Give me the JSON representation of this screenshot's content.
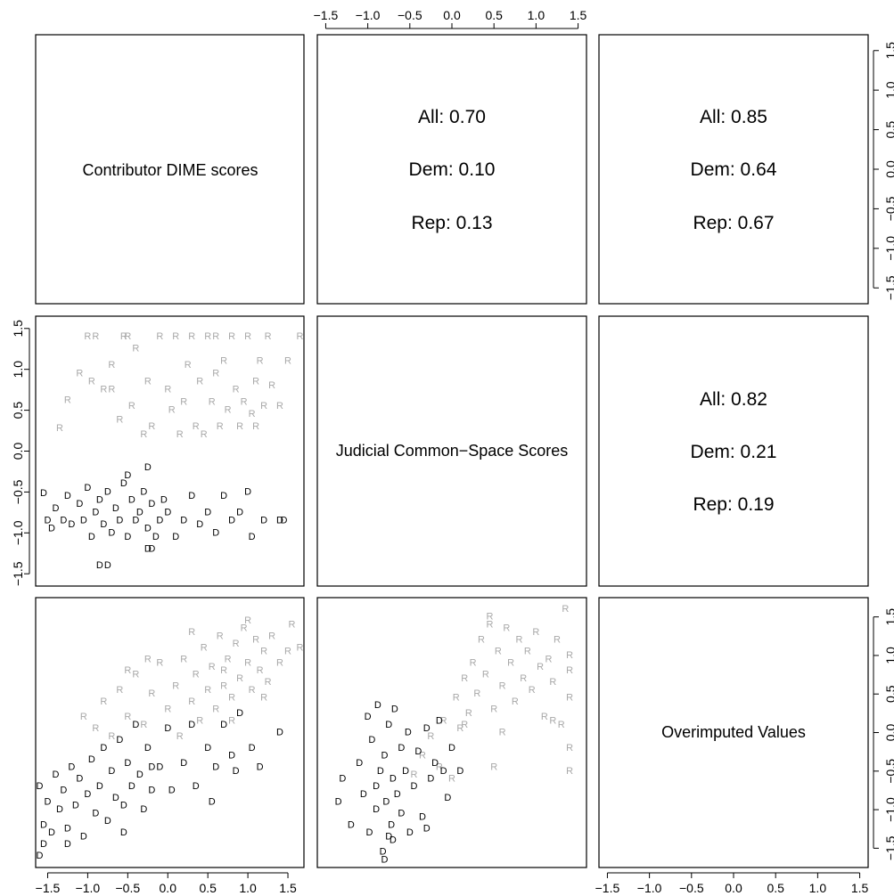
{
  "colors": {
    "dem": "#000000",
    "rep": "#a8a8a8"
  },
  "variables": [
    "Contributor DIME scores",
    "Judicial Common−Space Scores",
    "Overimputed Values"
  ],
  "ticks": [
    -1.5,
    -1.0,
    -0.5,
    0.0,
    0.5,
    1.0,
    1.5
  ],
  "tick_labels": [
    "−1.5",
    "−1.0",
    "−0.5",
    "0.0",
    "0.5",
    "1.0",
    "1.5"
  ],
  "correlations": [
    {
      "row": 0,
      "col": 1,
      "all": "All: 0.70",
      "dem": "Dem: 0.10",
      "rep": "Rep: 0.13"
    },
    {
      "row": 0,
      "col": 2,
      "all": "All: 0.85",
      "dem": "Dem: 0.64",
      "rep": "Rep: 0.67"
    },
    {
      "row": 1,
      "col": 2,
      "all": "All: 0.82",
      "dem": "Dem: 0.21",
      "rep": "Rep: 0.19"
    }
  ],
  "chart_data": {
    "type": "scatter",
    "title": "",
    "marker_labels": {
      "dem": "D",
      "rep": "R"
    },
    "panels": [
      {
        "name": "Judicial Common-Space Scores vs Contributor DIME scores",
        "xvar": "Contributor DIME scores",
        "yvar": "Judicial Common−Space Scores",
        "xlim": [
          -1.65,
          1.7
        ],
        "ylim": [
          -1.65,
          1.65
        ],
        "rep": [
          [
            -1.35,
            0.28
          ],
          [
            -1.25,
            0.62
          ],
          [
            -1.1,
            0.95
          ],
          [
            -1.0,
            1.4
          ],
          [
            -0.95,
            0.85
          ],
          [
            -0.9,
            1.4
          ],
          [
            -0.8,
            0.75
          ],
          [
            -0.7,
            1.05
          ],
          [
            -0.6,
            0.38
          ],
          [
            -0.55,
            1.4
          ],
          [
            -0.5,
            1.4
          ],
          [
            -0.45,
            0.55
          ],
          [
            -0.4,
            1.25
          ],
          [
            -0.3,
            0.2
          ],
          [
            -0.2,
            0.3
          ],
          [
            -0.1,
            1.4
          ],
          [
            0.0,
            0.75
          ],
          [
            0.05,
            0.5
          ],
          [
            0.1,
            1.4
          ],
          [
            0.15,
            0.2
          ],
          [
            0.2,
            0.6
          ],
          [
            0.25,
            1.05
          ],
          [
            0.3,
            1.4
          ],
          [
            0.35,
            0.3
          ],
          [
            0.4,
            0.85
          ],
          [
            0.45,
            0.2
          ],
          [
            0.5,
            1.4
          ],
          [
            0.55,
            0.6
          ],
          [
            0.6,
            0.95
          ],
          [
            0.65,
            0.3
          ],
          [
            0.7,
            1.1
          ],
          [
            0.75,
            0.5
          ],
          [
            0.8,
            1.4
          ],
          [
            0.85,
            0.75
          ],
          [
            0.9,
            0.3
          ],
          [
            0.95,
            0.6
          ],
          [
            1.0,
            1.4
          ],
          [
            1.05,
            0.45
          ],
          [
            1.1,
            0.85
          ],
          [
            1.15,
            1.1
          ],
          [
            1.2,
            0.55
          ],
          [
            1.25,
            1.4
          ],
          [
            1.3,
            0.8
          ],
          [
            1.4,
            0.55
          ],
          [
            1.5,
            1.1
          ],
          [
            1.65,
            1.4
          ],
          [
            -0.7,
            0.75
          ],
          [
            -0.25,
            0.85
          ],
          [
            0.6,
            1.4
          ],
          [
            1.1,
            0.3
          ]
        ],
        "dem": [
          [
            -1.55,
            -0.52
          ],
          [
            -1.5,
            -0.85
          ],
          [
            -1.45,
            -0.95
          ],
          [
            -1.4,
            -0.7
          ],
          [
            -1.3,
            -0.85
          ],
          [
            -1.25,
            -0.55
          ],
          [
            -1.2,
            -0.9
          ],
          [
            -1.1,
            -0.65
          ],
          [
            -1.05,
            -0.85
          ],
          [
            -1.0,
            -0.45
          ],
          [
            -0.95,
            -1.05
          ],
          [
            -0.9,
            -0.75
          ],
          [
            -0.85,
            -0.6
          ],
          [
            -0.8,
            -0.9
          ],
          [
            -0.75,
            -0.5
          ],
          [
            -0.7,
            -1.0
          ],
          [
            -0.65,
            -0.7
          ],
          [
            -0.6,
            -0.85
          ],
          [
            -0.55,
            -0.4
          ],
          [
            -0.5,
            -1.05
          ],
          [
            -0.45,
            -0.6
          ],
          [
            -0.4,
            -0.85
          ],
          [
            -0.35,
            -0.75
          ],
          [
            -0.3,
            -0.5
          ],
          [
            -0.25,
            -0.95
          ],
          [
            -0.2,
            -0.65
          ],
          [
            -0.15,
            -1.05
          ],
          [
            -0.1,
            -0.85
          ],
          [
            -0.05,
            -0.6
          ],
          [
            0.0,
            -0.75
          ],
          [
            0.1,
            -1.05
          ],
          [
            0.2,
            -0.85
          ],
          [
            0.3,
            -0.55
          ],
          [
            0.4,
            -0.9
          ],
          [
            0.5,
            -0.75
          ],
          [
            0.6,
            -1.0
          ],
          [
            0.7,
            -0.55
          ],
          [
            0.8,
            -0.85
          ],
          [
            0.9,
            -0.75
          ],
          [
            1.0,
            -0.5
          ],
          [
            1.05,
            -1.05
          ],
          [
            1.2,
            -0.85
          ],
          [
            1.4,
            -0.85
          ],
          [
            1.45,
            -0.85
          ],
          [
            -0.85,
            -1.4
          ],
          [
            -0.75,
            -1.4
          ],
          [
            -0.25,
            -1.2
          ],
          [
            -0.2,
            -1.2
          ],
          [
            -0.25,
            -0.2
          ],
          [
            -0.5,
            -0.3
          ]
        ]
      },
      {
        "name": "Overimputed Values vs Contributor DIME scores",
        "xvar": "Contributor DIME scores",
        "yvar": "Overimputed Values",
        "xlim": [
          -1.65,
          1.7
        ],
        "ylim": [
          -1.75,
          1.75
        ],
        "rep": [
          [
            -1.05,
            0.2
          ],
          [
            -0.9,
            0.05
          ],
          [
            -0.8,
            0.4
          ],
          [
            -0.7,
            -0.05
          ],
          [
            -0.6,
            0.55
          ],
          [
            -0.5,
            0.2
          ],
          [
            -0.4,
            0.75
          ],
          [
            -0.3,
            0.1
          ],
          [
            -0.2,
            0.5
          ],
          [
            -0.1,
            0.9
          ],
          [
            0.0,
            0.3
          ],
          [
            0.1,
            0.6
          ],
          [
            0.15,
            -0.05
          ],
          [
            0.2,
            0.95
          ],
          [
            0.3,
            0.4
          ],
          [
            0.35,
            0.75
          ],
          [
            0.4,
            0.15
          ],
          [
            0.45,
            1.1
          ],
          [
            0.5,
            0.55
          ],
          [
            0.55,
            0.85
          ],
          [
            0.6,
            0.3
          ],
          [
            0.65,
            1.25
          ],
          [
            0.7,
            0.6
          ],
          [
            0.75,
            0.95
          ],
          [
            0.8,
            0.45
          ],
          [
            0.85,
            1.15
          ],
          [
            0.9,
            0.7
          ],
          [
            0.95,
            1.35
          ],
          [
            1.0,
            0.9
          ],
          [
            1.05,
            0.55
          ],
          [
            1.1,
            1.2
          ],
          [
            1.15,
            0.8
          ],
          [
            1.2,
            1.05
          ],
          [
            1.25,
            0.65
          ],
          [
            1.3,
            1.25
          ],
          [
            1.4,
            0.9
          ],
          [
            1.5,
            1.05
          ],
          [
            1.55,
            1.4
          ],
          [
            1.65,
            1.1
          ],
          [
            0.3,
            1.3
          ],
          [
            -0.5,
            0.8
          ],
          [
            0.8,
            0.15
          ],
          [
            1.0,
            1.45
          ],
          [
            0.7,
            0.8
          ],
          [
            1.2,
            0.45
          ],
          [
            -0.25,
            0.95
          ]
        ],
        "dem": [
          [
            -1.6,
            -0.7
          ],
          [
            -1.55,
            -1.2
          ],
          [
            -1.5,
            -0.9
          ],
          [
            -1.45,
            -1.3
          ],
          [
            -1.4,
            -0.55
          ],
          [
            -1.35,
            -1.0
          ],
          [
            -1.3,
            -0.75
          ],
          [
            -1.25,
            -1.25
          ],
          [
            -1.2,
            -0.45
          ],
          [
            -1.15,
            -0.95
          ],
          [
            -1.1,
            -0.6
          ],
          [
            -1.05,
            -1.35
          ],
          [
            -1.0,
            -0.8
          ],
          [
            -0.95,
            -0.35
          ],
          [
            -0.9,
            -1.05
          ],
          [
            -0.85,
            -0.7
          ],
          [
            -0.8,
            -0.2
          ],
          [
            -0.75,
            -1.15
          ],
          [
            -0.7,
            -0.5
          ],
          [
            -0.65,
            -0.85
          ],
          [
            -0.6,
            -0.1
          ],
          [
            -0.55,
            -0.95
          ],
          [
            -0.5,
            -0.4
          ],
          [
            -0.45,
            -0.7
          ],
          [
            -0.4,
            0.1
          ],
          [
            -0.35,
            -0.55
          ],
          [
            -0.3,
            -1.0
          ],
          [
            -0.25,
            -0.2
          ],
          [
            -0.2,
            -0.75
          ],
          [
            -0.1,
            -0.45
          ],
          [
            0.0,
            0.05
          ],
          [
            0.05,
            -0.75
          ],
          [
            0.2,
            -0.4
          ],
          [
            0.3,
            0.1
          ],
          [
            0.35,
            -0.7
          ],
          [
            0.5,
            -0.2
          ],
          [
            0.55,
            -0.9
          ],
          [
            0.6,
            -0.45
          ],
          [
            0.7,
            0.1
          ],
          [
            0.8,
            -0.3
          ],
          [
            0.85,
            -0.5
          ],
          [
            0.9,
            0.25
          ],
          [
            1.05,
            -0.2
          ],
          [
            1.15,
            -0.45
          ],
          [
            1.4,
            0.0
          ],
          [
            -1.6,
            -1.6
          ],
          [
            -1.55,
            -1.45
          ],
          [
            -1.25,
            -1.45
          ],
          [
            -0.55,
            -1.3
          ],
          [
            -0.2,
            -0.45
          ]
        ]
      },
      {
        "name": "Overimputed Values vs Judicial Common-Space Scores",
        "xvar": "Judicial Common−Space Scores",
        "yvar": "Overimputed Values",
        "xlim": [
          -1.6,
          1.6
        ],
        "ylim": [
          -1.75,
          1.75
        ],
        "rep": [
          [
            -0.45,
            -0.55
          ],
          [
            -0.35,
            -0.3
          ],
          [
            -0.25,
            -0.05
          ],
          [
            -0.15,
            -0.45
          ],
          [
            -0.1,
            0.15
          ],
          [
            0.0,
            -0.6
          ],
          [
            0.05,
            0.45
          ],
          [
            0.1,
            0.05
          ],
          [
            0.15,
            0.7
          ],
          [
            0.2,
            0.25
          ],
          [
            0.25,
            0.9
          ],
          [
            0.3,
            0.5
          ],
          [
            0.35,
            1.2
          ],
          [
            0.4,
            0.75
          ],
          [
            0.45,
            1.4
          ],
          [
            0.5,
            0.3
          ],
          [
            0.55,
            1.05
          ],
          [
            0.6,
            0.6
          ],
          [
            0.65,
            1.35
          ],
          [
            0.7,
            0.9
          ],
          [
            0.75,
            0.4
          ],
          [
            0.8,
            1.2
          ],
          [
            0.85,
            0.7
          ],
          [
            0.9,
            1.05
          ],
          [
            0.95,
            0.55
          ],
          [
            1.0,
            1.3
          ],
          [
            1.05,
            0.85
          ],
          [
            1.1,
            0.2
          ],
          [
            1.15,
            0.95
          ],
          [
            1.2,
            0.65
          ],
          [
            1.25,
            1.2
          ],
          [
            1.3,
            0.1
          ],
          [
            1.35,
            1.6
          ],
          [
            1.4,
            0.8
          ],
          [
            1.4,
            -0.2
          ],
          [
            1.4,
            -0.5
          ],
          [
            1.4,
            0.45
          ],
          [
            1.4,
            1.0
          ],
          [
            0.6,
            0.0
          ],
          [
            0.5,
            -0.45
          ],
          [
            1.2,
            0.15
          ],
          [
            0.45,
            1.5
          ],
          [
            0.15,
            0.1
          ]
        ],
        "dem": [
          [
            -1.35,
            -0.9
          ],
          [
            -1.3,
            -0.6
          ],
          [
            -1.2,
            -1.2
          ],
          [
            -1.1,
            -0.4
          ],
          [
            -1.05,
            -0.8
          ],
          [
            -1.0,
            0.2
          ],
          [
            -0.98,
            -1.3
          ],
          [
            -0.95,
            -0.1
          ],
          [
            -0.9,
            -0.7
          ],
          [
            -0.9,
            -1.0
          ],
          [
            -0.88,
            0.35
          ],
          [
            -0.85,
            -0.5
          ],
          [
            -0.82,
            -1.55
          ],
          [
            -0.8,
            -0.3
          ],
          [
            -0.78,
            -0.9
          ],
          [
            -0.75,
            0.1
          ],
          [
            -0.72,
            -1.2
          ],
          [
            -0.7,
            -0.6
          ],
          [
            -0.7,
            -1.4
          ],
          [
            -0.68,
            0.3
          ],
          [
            -0.65,
            -0.8
          ],
          [
            -0.6,
            -0.2
          ],
          [
            -0.6,
            -1.05
          ],
          [
            -0.55,
            -0.5
          ],
          [
            -0.52,
            0.0
          ],
          [
            -0.5,
            -1.3
          ],
          [
            -0.45,
            -0.7
          ],
          [
            -0.4,
            -0.25
          ],
          [
            -0.35,
            -1.1
          ],
          [
            -0.3,
            0.05
          ],
          [
            -0.25,
            -0.6
          ],
          [
            -0.2,
            -0.4
          ],
          [
            -0.15,
            0.15
          ],
          [
            -0.1,
            -0.5
          ],
          [
            -0.05,
            -0.85
          ],
          [
            0.0,
            -0.2
          ],
          [
            0.1,
            -0.5
          ],
          [
            -0.8,
            -1.65
          ],
          [
            -0.75,
            -1.35
          ],
          [
            -0.3,
            -1.25
          ]
        ]
      }
    ]
  }
}
